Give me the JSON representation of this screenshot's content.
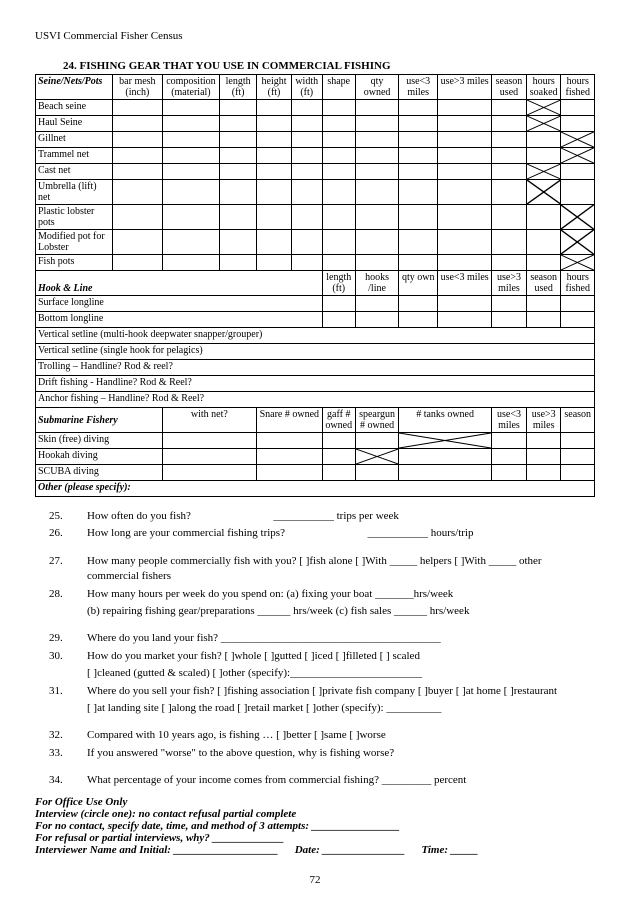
{
  "header": "USVI Commercial Fisher Census",
  "section_title": "24.  FISHING GEAR THAT YOU USE IN COMMERCIAL FISHING",
  "table1": {
    "corner": "Seine/Nets/Pots",
    "cols": [
      "bar mesh (inch)",
      "composition (material)",
      "length (ft)",
      "height (ft)",
      "width (ft)",
      "shape",
      "qty owned",
      "use<3 miles",
      "use>3 miles",
      "season used",
      "hours soaked",
      "hours fished"
    ],
    "rows": [
      "Beach seine",
      "Haul Seine",
      "Gillnet",
      "Trammel net",
      "Cast net",
      "Umbrella (lift) net",
      "Plastic lobster pots",
      "Modified pot for Lobster",
      "Fish pots"
    ]
  },
  "table2": {
    "corner": "Hook & Line",
    "cols": [
      "length (ft)",
      "hooks /line",
      "qty own",
      "use<3 miles",
      "use>3 miles",
      "season used",
      "hours fished"
    ],
    "rows": [
      "Surface longline",
      "Bottom longline",
      "Vertical setline (multi-hook deepwater snapper/grouper)",
      "Vertical setline (single hook for pelagics)",
      "Trolling –        Handline?       Rod & reel?",
      "Drift fishing -    Handline?      Rod & Reel?",
      "Anchor fishing – Handline?      Rod & Reel?"
    ]
  },
  "table3": {
    "corner": "Submarine Fishery",
    "cols": [
      "with net?",
      "Snare # owned",
      "gaff # owned",
      "speargun # owned",
      "# tanks owned",
      "use<3 miles",
      "use>3 miles",
      "season"
    ],
    "rows": [
      "Skin (free) diving",
      "Hookah diving",
      "SCUBA diving"
    ],
    "footer": "Other (please specify):"
  },
  "questions": [
    {
      "n": "25.",
      "t": "How often do you fish?",
      "suffix": "trips per week",
      "blank": true
    },
    {
      "n": "26.",
      "t": "How long are your commercial fishing trips?",
      "suffix": "hours/trip",
      "blank": true
    },
    {
      "n": "",
      "t": ""
    },
    {
      "n": "27.",
      "t": "How many people commercially fish with you?  [ ]fish alone    [ ]With _____ helpers    [ ]With _____ other commercial fishers"
    },
    {
      "n": "28.",
      "t": "How many hours per week do you spend on: (a) fixing your boat _______hrs/week"
    },
    {
      "n": "",
      "t": "(b) repairing fishing gear/preparations ______ hrs/week  (c) fish sales ______ hrs/week"
    },
    {
      "n": "",
      "t": ""
    },
    {
      "n": "29.",
      "t": "Where do you land your fish? ________________________________________"
    },
    {
      "n": "30.",
      "t": "How do you market your fish?  [ ]whole  [ ]gutted   [ ]iced   [ ]filleted   [ ] scaled"
    },
    {
      "n": "",
      "t": "[ ]cleaned (gutted & scaled)   [ ]other (specify):________________________"
    },
    {
      "n": "31.",
      "t": "Where do you sell your fish? [ ]fishing association  [ ]private fish company  [ ]buyer  [ ]at home  [ ]restaurant"
    },
    {
      "n": "",
      "t": "[ ]at landing site  [ ]along the road   [ ]retail market  [ ]other (specify): __________"
    },
    {
      "n": "",
      "t": ""
    },
    {
      "n": "32.",
      "t": "Compared with 10 years ago, is fishing …  [ ]better     [ ]same    [ ]worse"
    },
    {
      "n": "33.",
      "t": "If you answered \"worse\" to the above question, why is fishing worse?"
    },
    {
      "n": "",
      "t": ""
    },
    {
      "n": "34.",
      "t": "What percentage of your income comes from commercial fishing?   _________ percent"
    }
  ],
  "office": {
    "l1": "For Office Use Only",
    "l2": "Interview (circle one):  no contact   refusal   partial   complete",
    "l3": "For no contact, specify date, time, and method of 3 attempts: ________________",
    "l4": "For refusal or partial interviews, why? _____________",
    "l5_a": "Interviewer Name and Initial: ___________________",
    "l5_b": "Date: _______________",
    "l5_c": "Time: _____"
  },
  "pagenum": "72"
}
